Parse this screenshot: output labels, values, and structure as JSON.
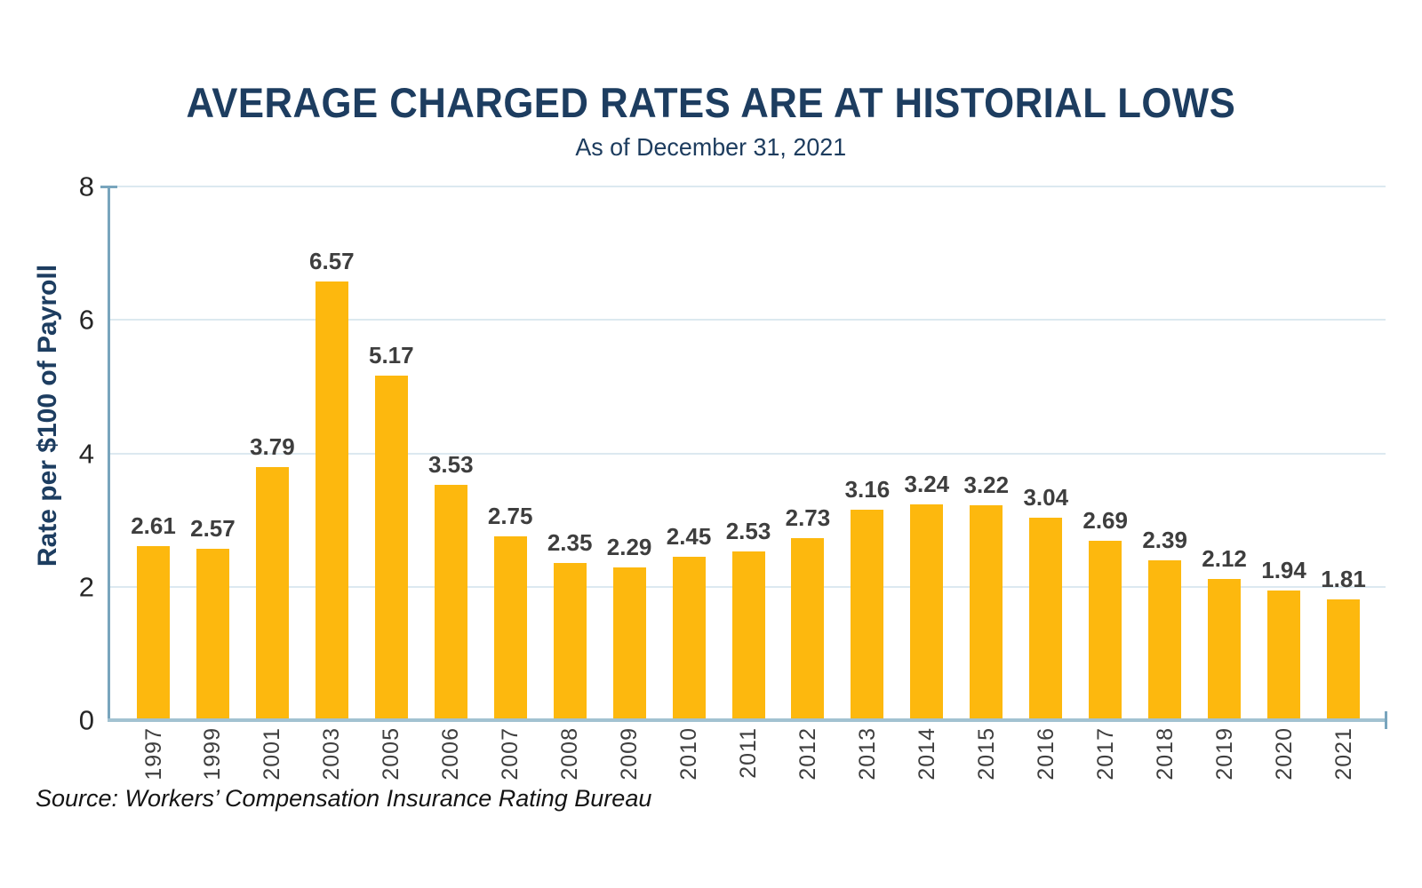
{
  "header": {
    "title": "AVERAGE CHARGED RATES ARE AT HISTORIAL LOWS",
    "subtitle": "As of December 31, 2021"
  },
  "source_note": "Source: Workers’ Compensation Insurance Rating Bureau",
  "colors": {
    "bar_gold": "#FDB80E",
    "title_navy": "#1D3D60",
    "y_axis_blue": "#79A5BD",
    "x_axis_blue": "#A2C2D1",
    "gridline_blue": "#DCE9F0",
    "label_gray": "#3E3E3E"
  },
  "chart_data": {
    "type": "bar",
    "title": "AVERAGE CHARGED RATES ARE AT HISTORIAL LOWS",
    "subtitle": "As of December 31, 2021",
    "categories": [
      "1997",
      "1999",
      "2001",
      "2003",
      "2005",
      "2006",
      "2007",
      "2008",
      "2009",
      "2010",
      "2011",
      "2012",
      "2013",
      "2014",
      "2015",
      "2016",
      "2017",
      "2018",
      "2019",
      "2020",
      "2021"
    ],
    "values": [
      2.61,
      2.57,
      3.79,
      6.57,
      5.17,
      3.53,
      2.75,
      2.35,
      2.29,
      2.45,
      2.53,
      2.73,
      3.16,
      3.24,
      3.22,
      3.04,
      2.69,
      2.39,
      2.12,
      1.94,
      1.81
    ],
    "xlabel": "",
    "ylabel": "Rate per $100 of Payroll",
    "ylim": [
      0,
      8
    ],
    "yticks": [
      0,
      2,
      4,
      6,
      8
    ],
    "grid": true,
    "legend_position": "none",
    "bar_data_labels": true
  }
}
